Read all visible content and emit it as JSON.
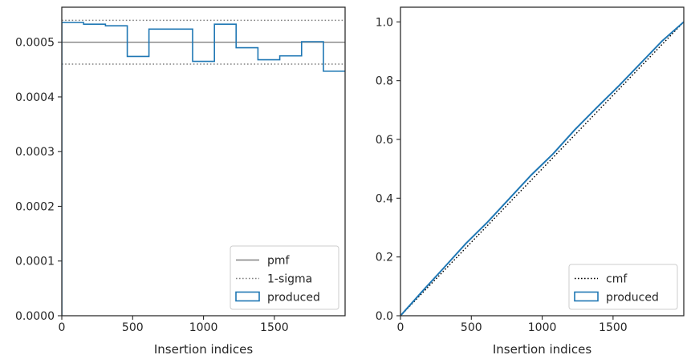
{
  "chart_data": [
    {
      "type": "line",
      "panel": "left",
      "title": "",
      "xlabel": "Insertion indices",
      "ylabel": "",
      "xlim": [
        0,
        1999
      ],
      "ylim": [
        0,
        0.000564
      ],
      "xticks": [
        0,
        500,
        1000,
        1500
      ],
      "xtick_labels": [
        "0",
        "500",
        "1000",
        "1500"
      ],
      "yticks": [
        0,
        0.0001,
        0.0002,
        0.0003,
        0.0004,
        0.0005
      ],
      "ytick_labels": [
        "0.0000",
        "0.0001",
        "0.0002",
        "0.0003",
        "0.0004",
        "0.0005"
      ],
      "grid": false,
      "legend_position": "lower right",
      "legend": [
        {
          "label": "pmf",
          "style": "solid",
          "color": "#808080"
        },
        {
          "label": "1-sigma",
          "style": "dotted",
          "color": "#808080"
        },
        {
          "label": "produced",
          "style": "step-patch",
          "color": "#1f77b4"
        }
      ],
      "hlines": [
        {
          "name": "pmf",
          "y": 0.0005,
          "style": "solid",
          "color": "#808080"
        },
        {
          "name": "1-sigma upper",
          "y": 0.00054,
          "style": "dotted",
          "color": "#808080"
        },
        {
          "name": "1-sigma lower",
          "y": 0.00046,
          "style": "dotted",
          "color": "#808080"
        }
      ],
      "series": [
        {
          "name": "produced",
          "step": "post",
          "color": "#1f77b4",
          "bin_edges": [
            0,
            154,
            308,
            462,
            615,
            769,
            923,
            1077,
            1230,
            1384,
            1538,
            1692,
            1846,
            1999
          ],
          "values": [
            0.000536,
            0.000533,
            0.00053,
            0.000474,
            0.000524,
            0.000524,
            0.000465,
            0.000533,
            0.00049,
            0.000468,
            0.000475,
            0.000501,
            0.000447
          ]
        }
      ]
    },
    {
      "type": "line",
      "panel": "right",
      "title": "",
      "xlabel": "Insertion indices",
      "ylabel": "",
      "xlim": [
        0,
        1999
      ],
      "ylim": [
        0,
        1.05
      ],
      "xticks": [
        0,
        500,
        1000,
        1500
      ],
      "xtick_labels": [
        "0",
        "500",
        "1000",
        "1500"
      ],
      "yticks": [
        0,
        0.2,
        0.4,
        0.6,
        0.8,
        1.0
      ],
      "ytick_labels": [
        "0.0",
        "0.2",
        "0.4",
        "0.6",
        "0.8",
        "1.0"
      ],
      "grid": false,
      "legend_position": "lower right",
      "legend": [
        {
          "label": "cmf",
          "style": "dotted",
          "color": "#000000"
        },
        {
          "label": "produced",
          "style": "step-patch",
          "color": "#1f77b4"
        }
      ],
      "series": [
        {
          "name": "cmf",
          "style": "dotted",
          "color": "#000000",
          "x": [
            0,
            1999
          ],
          "y": [
            0,
            1.0
          ]
        },
        {
          "name": "produced",
          "style": "solid",
          "color": "#1f77b4",
          "x": [
            0,
            154,
            308,
            462,
            615,
            769,
            923,
            1077,
            1230,
            1384,
            1538,
            1692,
            1846,
            1999
          ],
          "y": [
            0,
            0.083,
            0.164,
            0.246,
            0.319,
            0.399,
            0.479,
            0.551,
            0.633,
            0.708,
            0.781,
            0.858,
            0.935,
            1.0
          ]
        }
      ]
    }
  ]
}
